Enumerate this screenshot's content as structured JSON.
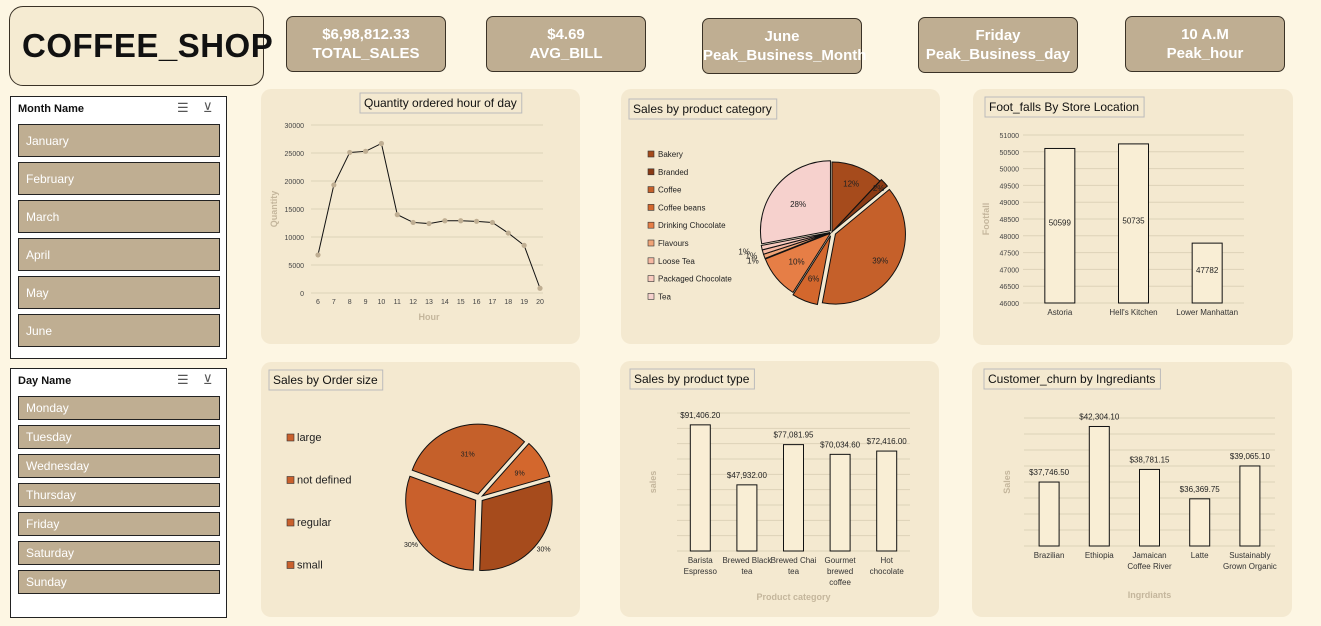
{
  "title": "COFFEE_SHOP",
  "kpis": [
    {
      "value": "$6,98,812.33",
      "label": "TOTAL_SALES"
    },
    {
      "value": "$4.69",
      "label": "AVG_BILL"
    },
    {
      "value": "June",
      "label": "Peak_Business_Month"
    },
    {
      "value": "Friday",
      "label": "Peak_Business_day"
    },
    {
      "value": "10 A.M",
      "label": "Peak_hour"
    }
  ],
  "month_slicer": {
    "title": "Month Name",
    "items": [
      "January",
      "February",
      "March",
      "April",
      "May",
      "June"
    ]
  },
  "day_slicer": {
    "title": "Day Name",
    "items": [
      "Monday",
      "Tuesday",
      "Wednesday",
      "Thursday",
      "Friday",
      "Saturday",
      "Sunday"
    ]
  },
  "colors": {
    "card": "#bfae92",
    "panel": "#f4e9d0",
    "bar": "#f9eed5",
    "line": "#111111",
    "marker": "#bfae92"
  },
  "chart_data": [
    {
      "id": "hour",
      "type": "line",
      "title": "Quantity ordered hour of day",
      "xlabel": "Hour",
      "ylabel": "Quantity",
      "x": [
        "6",
        "7",
        "8",
        "9",
        "10",
        "11",
        "12",
        "13",
        "14",
        "15",
        "16",
        "17",
        "18",
        "19",
        "20"
      ],
      "values": [
        6800,
        19300,
        25100,
        25300,
        26700,
        14000,
        12600,
        12400,
        12900,
        12900,
        12800,
        12600,
        10700,
        8500,
        850
      ],
      "ylim": [
        0,
        30000
      ],
      "yticks": [
        "0",
        "5000",
        "10000",
        "15000",
        "20000",
        "25000",
        "30000"
      ],
      "grid": true
    },
    {
      "id": "category",
      "type": "pie",
      "title": "Sales by product category",
      "legend": "left",
      "labels": [
        "Bakery",
        "Branded",
        "Coffee",
        "Coffee beans",
        "Drinking Chocolate",
        "Flavours",
        "Loose Tea",
        "Packaged Chocolate",
        "Tea"
      ],
      "values": [
        12,
        2,
        39,
        6,
        10,
        1,
        1,
        1,
        28
      ],
      "value_labels": [
        "12%",
        "2%",
        "39%",
        "6%",
        "10%",
        "1%",
        "1%",
        "1%",
        "28%"
      ],
      "colors": [
        "#a64b1c",
        "#8a3a14",
        "#c5602a",
        "#d3672d",
        "#e67e46",
        "#f0a477",
        "#f6b8a2",
        "#f9cbbf",
        "#f6d1cd"
      ]
    },
    {
      "id": "location",
      "type": "bar",
      "title": "Foot_falls By Store Location",
      "xlabel": "",
      "ylabel": "Footfall",
      "categories": [
        "Astoria",
        "Hell's Kitchen",
        "Lower Manhattan"
      ],
      "values": [
        50599,
        50735,
        47782
      ],
      "value_labels": [
        "50599",
        "50735",
        "47782"
      ],
      "ylim": [
        46000,
        51000
      ],
      "yticks": [
        "46000",
        "46500",
        "47000",
        "47500",
        "48000",
        "48500",
        "49000",
        "49500",
        "50000",
        "50500",
        "51000"
      ],
      "grid": true
    },
    {
      "id": "ordersize",
      "type": "pie",
      "title": "Sales by Order size",
      "legend": "left",
      "labels": [
        "large",
        "not defined",
        "regular",
        "small"
      ],
      "values": [
        31,
        9,
        30,
        30
      ],
      "value_labels": [
        "31%",
        "9%",
        "30%",
        "30%"
      ],
      "colors": [
        "#c5602a",
        "#d3672d",
        "#a64b1c",
        "#c9602c"
      ]
    },
    {
      "id": "ptype",
      "type": "bar",
      "title": "Sales by product type",
      "xlabel": "Product category",
      "ylabel": "sales",
      "categories": [
        "Barista Espresso",
        "Brewed Black tea",
        "Brewed Chai tea",
        "Gourmet brewed coffee",
        "Hot chocolate"
      ],
      "values": [
        91406.2,
        47932.0,
        77081.95,
        70034.6,
        72416.0
      ],
      "value_labels": [
        "$91,406.20",
        "$47,932.00",
        "$77,081.95",
        "$70,034.60",
        "$72,416.00"
      ],
      "ylim": [
        0,
        100000
      ],
      "grid": true
    },
    {
      "id": "churn",
      "type": "bar",
      "title": "Customer_churn by Ingrediants",
      "xlabel": "Ingrdiants",
      "ylabel": "Sales",
      "categories": [
        "Brazilian",
        "Ethiopia",
        "Jamaican Coffee River",
        "Latte",
        "Sustainably Grown Organic"
      ],
      "values": [
        37746.5,
        42304.1,
        38781.15,
        36369.75,
        39065.1
      ],
      "value_labels": [
        "$37,746.50",
        "$42,304.10",
        "$38,781.15",
        "$36,369.75",
        "$39,065.10"
      ],
      "ylim": [
        32500,
        43000
      ],
      "grid": true
    }
  ]
}
